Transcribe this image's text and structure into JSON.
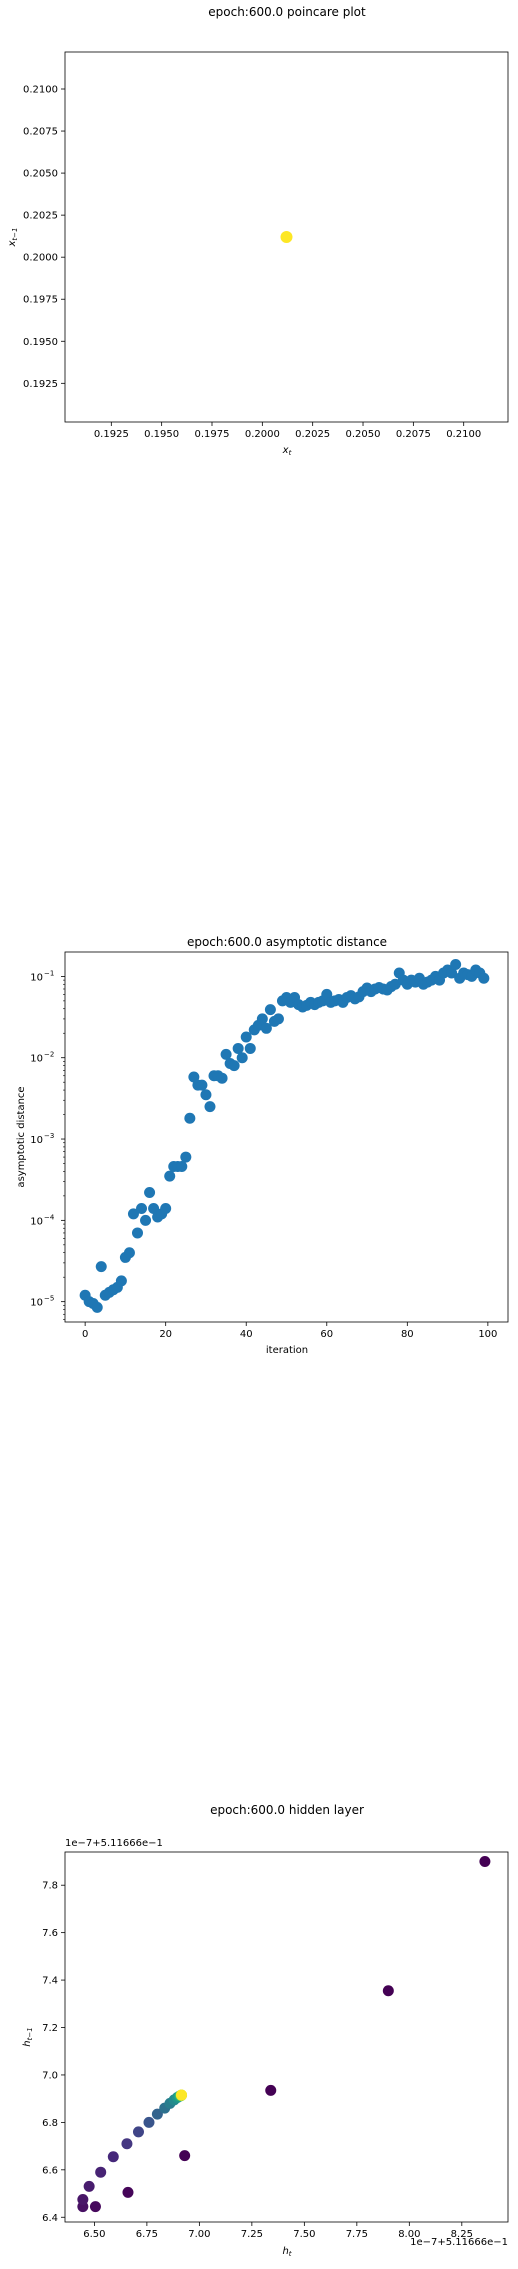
{
  "chart_data": [
    {
      "type": "scatter",
      "title": "epoch:600.0 poincare plot",
      "xlabel": "x_t",
      "ylabel": "x_{t−1}",
      "xlim": [
        0.1902,
        0.2122
      ],
      "ylim": [
        0.1902,
        0.2122
      ],
      "xticks": [
        0.1925,
        0.195,
        0.1975,
        0.2,
        0.2025,
        0.205,
        0.2075,
        0.21
      ],
      "yticks": [
        0.1925,
        0.195,
        0.1975,
        0.2,
        0.2025,
        0.205,
        0.2075,
        0.21
      ],
      "tick_labels": [
        "0.1925",
        "0.1950",
        "0.1975",
        "0.2000",
        "0.2025",
        "0.2050",
        "0.2075",
        "0.2100"
      ],
      "points": [
        {
          "x": 0.2012,
          "y": 0.2012,
          "color": "#fde725"
        }
      ]
    },
    {
      "type": "scatter",
      "title": "epoch:600.0 asymptotic distance",
      "xlabel": "iteration",
      "ylabel": "asymptotic distance",
      "xlim": [
        -5,
        105
      ],
      "ylim_log10": [
        -5.25,
        -0.7
      ],
      "yscale": "log",
      "color": "#1f77b4",
      "xticks": [
        0,
        20,
        40,
        60,
        80,
        100
      ],
      "xtick_labels": [
        "0",
        "20",
        "40",
        "60",
        "80",
        "100"
      ],
      "yticks_log10": [
        -5,
        -4,
        -3,
        -2,
        -1
      ],
      "ytick_labels": [
        "10",
        "10",
        "10",
        "10",
        "10"
      ],
      "ytick_exponents": [
        "−5",
        "−4",
        "−3",
        "−2",
        "−1"
      ],
      "x": [
        0,
        1,
        2,
        3,
        4,
        5,
        6,
        7,
        8,
        9,
        10,
        11,
        12,
        13,
        14,
        15,
        16,
        17,
        18,
        19,
        20,
        21,
        22,
        23,
        24,
        25,
        26,
        27,
        28,
        29,
        30,
        31,
        32,
        33,
        34,
        35,
        36,
        37,
        38,
        39,
        40,
        41,
        42,
        43,
        44,
        45,
        46,
        47,
        48,
        49,
        50,
        51,
        52,
        53,
        54,
        55,
        56,
        57,
        58,
        59,
        60,
        61,
        62,
        63,
        64,
        65,
        66,
        67,
        68,
        69,
        70,
        71,
        72,
        73,
        74,
        75,
        76,
        77,
        78,
        79,
        80,
        81,
        82,
        83,
        84,
        85,
        86,
        87,
        88,
        89,
        90,
        91,
        92,
        93,
        94,
        95,
        96,
        97,
        98,
        99
      ],
      "y": [
        1.2e-05,
        1e-05,
        9.5e-06,
        8.5e-06,
        2.7e-05,
        1.2e-05,
        1.3e-05,
        1.4e-05,
        1.5e-05,
        1.8e-05,
        3.5e-05,
        4e-05,
        0.00012,
        7e-05,
        0.00014,
        0.0001,
        0.00022,
        0.00014,
        0.00011,
        0.00012,
        0.00014,
        0.00035,
        0.00046,
        0.00046,
        0.00046,
        0.0006,
        0.0018,
        0.0058,
        0.0046,
        0.0046,
        0.0035,
        0.0025,
        0.006,
        0.006,
        0.0056,
        0.011,
        0.0085,
        0.008,
        0.013,
        0.01,
        0.018,
        0.013,
        0.022,
        0.025,
        0.03,
        0.023,
        0.039,
        0.028,
        0.03,
        0.05,
        0.055,
        0.048,
        0.055,
        0.045,
        0.042,
        0.044,
        0.048,
        0.045,
        0.048,
        0.05,
        0.06,
        0.048,
        0.05,
        0.052,
        0.048,
        0.055,
        0.058,
        0.053,
        0.056,
        0.065,
        0.072,
        0.065,
        0.07,
        0.073,
        0.07,
        0.068,
        0.075,
        0.08,
        0.11,
        0.09,
        0.08,
        0.09,
        0.085,
        0.095,
        0.08,
        0.085,
        0.09,
        0.1,
        0.09,
        0.11,
        0.12,
        0.11,
        0.14,
        0.095,
        0.11,
        0.105,
        0.1,
        0.12,
        0.11,
        0.095
      ]
    },
    {
      "type": "scatter",
      "title": "epoch:600.0 hidden layer",
      "xlabel": "h_t",
      "ylabel": "h_{t−1}",
      "x_offset_label": "1e−7+5.11666e−1",
      "y_offset_label": "1e−7+5.11666e−1",
      "xlim": [
        6.36,
        8.47
      ],
      "ylim": [
        6.38,
        7.94
      ],
      "xticks": [
        6.5,
        6.75,
        7.0,
        7.25,
        7.5,
        7.75,
        8.0,
        8.25
      ],
      "xtick_labels": [
        "6.50",
        "6.75",
        "7.00",
        "7.25",
        "7.50",
        "7.75",
        "8.00",
        "8.25"
      ],
      "yticks": [
        6.4,
        6.6,
        6.8,
        7.0,
        7.2,
        7.4,
        7.6,
        7.8
      ],
      "ytick_labels": [
        "6.4",
        "6.6",
        "6.8",
        "7.0",
        "7.2",
        "7.4",
        "7.6",
        "7.8"
      ],
      "points": [
        {
          "x": 8.36,
          "y": 7.9,
          "color": "#440154"
        },
        {
          "x": 7.9,
          "y": 7.355,
          "color": "#440154"
        },
        {
          "x": 7.34,
          "y": 6.935,
          "color": "#440154"
        },
        {
          "x": 6.93,
          "y": 6.66,
          "color": "#440154"
        },
        {
          "x": 6.66,
          "y": 6.505,
          "color": "#450559"
        },
        {
          "x": 6.505,
          "y": 6.445,
          "color": "#46085c"
        },
        {
          "x": 6.445,
          "y": 6.445,
          "color": "#471063"
        },
        {
          "x": 6.445,
          "y": 6.475,
          "color": "#481668"
        },
        {
          "x": 6.475,
          "y": 6.53,
          "color": "#481c6e"
        },
        {
          "x": 6.53,
          "y": 6.59,
          "color": "#472374"
        },
        {
          "x": 6.59,
          "y": 6.655,
          "color": "#46287a"
        },
        {
          "x": 6.655,
          "y": 6.71,
          "color": "#453781"
        },
        {
          "x": 6.71,
          "y": 6.76,
          "color": "#404587"
        },
        {
          "x": 6.76,
          "y": 6.8,
          "color": "#39558c"
        },
        {
          "x": 6.8,
          "y": 6.835,
          "color": "#33638d"
        },
        {
          "x": 6.835,
          "y": 6.86,
          "color": "#2d718e"
        },
        {
          "x": 6.86,
          "y": 6.88,
          "color": "#287d8e"
        },
        {
          "x": 6.88,
          "y": 6.895,
          "color": "#238a8d"
        },
        {
          "x": 6.895,
          "y": 6.905,
          "color": "#1f968b"
        },
        {
          "x": 6.905,
          "y": 6.91,
          "color": "#20a386"
        },
        {
          "x": 6.91,
          "y": 6.912,
          "color": "#29af7f"
        },
        {
          "x": 6.912,
          "y": 6.913,
          "color": "#3dbc74"
        },
        {
          "x": 6.913,
          "y": 6.914,
          "color": "#56c667"
        },
        {
          "x": 6.914,
          "y": 6.914,
          "color": "#75d054"
        },
        {
          "x": 6.914,
          "y": 6.915,
          "color": "#95d840"
        },
        {
          "x": 6.915,
          "y": 6.915,
          "color": "#bade28"
        },
        {
          "x": 6.915,
          "y": 6.915,
          "color": "#dde318"
        },
        {
          "x": 6.915,
          "y": 6.915,
          "color": "#fde725"
        }
      ]
    }
  ]
}
